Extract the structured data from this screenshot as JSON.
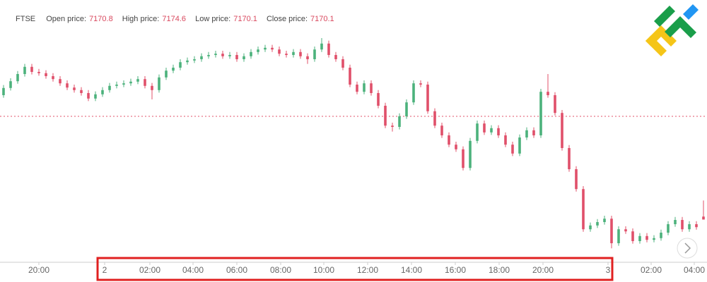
{
  "chart_data": {
    "type": "candlestick",
    "symbol": "FTSE",
    "fields": [
      {
        "label": "Open price:",
        "value": 7170.8
      },
      {
        "label": "High price:",
        "value": 7174.6
      },
      {
        "label": "Low price:",
        "value": 7170.1
      },
      {
        "label": "Close price:",
        "value": 7170.1
      }
    ],
    "up_color": "#4cb27c",
    "down_color": "#e0506a",
    "reference_line": 7194.5,
    "ylim": [
      7160,
      7222
    ],
    "xlim": [
      -0.5,
      99.5
    ],
    "xticks": [
      {
        "value": 5.0,
        "label": "20:00"
      },
      {
        "value": 14.3,
        "label": "2"
      },
      {
        "value": 20.7,
        "label": "02:00"
      },
      {
        "value": 26.8,
        "label": "04:00"
      },
      {
        "value": 33.0,
        "label": "06:00"
      },
      {
        "value": 39.2,
        "label": "08:00"
      },
      {
        "value": 45.3,
        "label": "10:00"
      },
      {
        "value": 51.5,
        "label": "12:00"
      },
      {
        "value": 57.7,
        "label": "14:00"
      },
      {
        "value": 63.9,
        "label": "16:00"
      },
      {
        "value": 70.1,
        "label": "18:00"
      },
      {
        "value": 76.3,
        "label": "20:00"
      },
      {
        "value": 85.5,
        "label": "3"
      },
      {
        "value": 91.6,
        "label": "02:00"
      },
      {
        "value": 97.7,
        "label": "04:00"
      }
    ],
    "ohlc": [
      [
        7199.5,
        7201.9,
        7198.9,
        7201.2
      ],
      [
        7201.2,
        7203.5,
        7200.6,
        7202.8
      ],
      [
        7202.8,
        7205.2,
        7202.2,
        7204.5
      ],
      [
        7204.5,
        7206.9,
        7203.9,
        7206.2
      ],
      [
        7206.2,
        7206.9,
        7204.4,
        7205.0
      ],
      [
        7205.0,
        7205.7,
        7204.1,
        7204.7
      ],
      [
        7204.7,
        7205.4,
        7203.4,
        7204.0
      ],
      [
        7204.0,
        7204.7,
        7202.7,
        7203.3
      ],
      [
        7203.3,
        7204.0,
        7201.7,
        7202.3
      ],
      [
        7202.3,
        7203.0,
        7200.7,
        7201.3
      ],
      [
        7201.3,
        7202.0,
        7200.1,
        7200.7
      ],
      [
        7200.7,
        7201.4,
        7199.4,
        7200.0
      ],
      [
        7200.0,
        7200.7,
        7198.1,
        7198.7
      ],
      [
        7198.7,
        7200.4,
        7198.1,
        7199.7
      ],
      [
        7199.7,
        7201.4,
        7199.1,
        7200.7
      ],
      [
        7200.7,
        7202.4,
        7200.1,
        7201.7
      ],
      [
        7201.7,
        7202.7,
        7201.1,
        7202.0
      ],
      [
        7202.0,
        7203.0,
        7201.4,
        7202.3
      ],
      [
        7202.3,
        7203.4,
        7201.7,
        7202.7
      ],
      [
        7202.7,
        7204.0,
        7202.1,
        7203.3
      ],
      [
        7203.3,
        7204.0,
        7201.1,
        7201.7
      ],
      [
        7201.7,
        7202.4,
        7198.5,
        7200.7
      ],
      [
        7200.7,
        7204.4,
        7200.1,
        7203.7
      ],
      [
        7203.7,
        7206.0,
        7203.1,
        7205.3
      ],
      [
        7205.3,
        7206.7,
        7204.7,
        7206.0
      ],
      [
        7206.0,
        7208.0,
        7205.4,
        7207.3
      ],
      [
        7207.3,
        7208.4,
        7206.7,
        7207.7
      ],
      [
        7207.7,
        7208.7,
        7207.1,
        7208.0
      ],
      [
        7208.0,
        7209.4,
        7207.4,
        7208.7
      ],
      [
        7208.7,
        7209.7,
        7208.1,
        7209.0
      ],
      [
        7209.0,
        7210.0,
        7208.4,
        7209.3
      ],
      [
        7209.3,
        7210.0,
        7208.1,
        7208.7
      ],
      [
        7208.7,
        7209.7,
        7208.1,
        7209.0
      ],
      [
        7209.0,
        7209.7,
        7207.4,
        7208.0
      ],
      [
        7208.0,
        7209.4,
        7207.4,
        7208.7
      ],
      [
        7208.7,
        7210.4,
        7208.1,
        7209.7
      ],
      [
        7209.7,
        7211.0,
        7209.1,
        7210.3
      ],
      [
        7210.3,
        7211.4,
        7209.7,
        7210.7
      ],
      [
        7210.7,
        7211.4,
        7209.7,
        7210.3
      ],
      [
        7210.3,
        7211.0,
        7208.7,
        7209.3
      ],
      [
        7209.3,
        7210.0,
        7208.4,
        7209.0
      ],
      [
        7209.0,
        7210.4,
        7208.4,
        7209.7
      ],
      [
        7209.7,
        7210.4,
        7208.1,
        7208.7
      ],
      [
        7208.7,
        7209.4,
        7206.9,
        7208.0
      ],
      [
        7208.0,
        7211.0,
        7207.4,
        7210.3
      ],
      [
        7210.3,
        7213.0,
        7209.7,
        7211.7
      ],
      [
        7211.7,
        7212.4,
        7208.4,
        7209.0
      ],
      [
        7209.0,
        7209.7,
        7207.4,
        7208.0
      ],
      [
        7208.0,
        7208.7,
        7205.4,
        7206.0
      ],
      [
        7206.0,
        7206.7,
        7201.4,
        7202.0
      ],
      [
        7202.0,
        7202.7,
        7199.7,
        7200.3
      ],
      [
        7200.3,
        7203.0,
        7199.7,
        7202.3
      ],
      [
        7202.3,
        7203.0,
        7199.4,
        7200.0
      ],
      [
        7200.0,
        7200.7,
        7196.4,
        7197.0
      ],
      [
        7197.0,
        7197.7,
        7191.7,
        7192.3
      ],
      [
        7192.3,
        7193.0,
        7190.9,
        7192.0
      ],
      [
        7192.0,
        7195.2,
        7191.4,
        7194.5
      ],
      [
        7194.5,
        7198.5,
        7193.9,
        7197.8
      ],
      [
        7197.8,
        7203.0,
        7197.2,
        7202.3
      ],
      [
        7202.3,
        7203.0,
        7201.4,
        7202.0
      ],
      [
        7202.0,
        7202.7,
        7195.1,
        7195.7
      ],
      [
        7195.7,
        7196.4,
        7191.7,
        7192.3
      ],
      [
        7192.3,
        7193.0,
        7189.4,
        7190.0
      ],
      [
        7190.0,
        7190.7,
        7187.2,
        7187.8
      ],
      [
        7187.8,
        7188.5,
        7186.1,
        7186.7
      ],
      [
        7186.7,
        7187.4,
        7181.7,
        7182.3
      ],
      [
        7182.3,
        7189.4,
        7181.7,
        7188.7
      ],
      [
        7188.7,
        7193.5,
        7188.1,
        7192.8
      ],
      [
        7192.8,
        7193.5,
        7190.1,
        7190.7
      ],
      [
        7190.7,
        7192.4,
        7190.1,
        7191.7
      ],
      [
        7191.7,
        7192.4,
        7189.4,
        7190.0
      ],
      [
        7190.0,
        7190.7,
        7187.2,
        7187.8
      ],
      [
        7187.8,
        7188.5,
        7185.1,
        7185.7
      ],
      [
        7185.7,
        7190.2,
        7185.1,
        7189.5
      ],
      [
        7189.5,
        7191.9,
        7188.9,
        7191.2
      ],
      [
        7191.2,
        7191.9,
        7189.4,
        7190.0
      ],
      [
        7190.0,
        7201.0,
        7189.4,
        7200.3
      ],
      [
        7200.3,
        7204.5,
        7198.9,
        7199.5
      ],
      [
        7199.5,
        7200.2,
        7194.7,
        7195.3
      ],
      [
        7195.3,
        7196.0,
        7186.4,
        7187.0
      ],
      [
        7187.0,
        7187.7,
        7181.4,
        7182.0
      ],
      [
        7182.0,
        7182.7,
        7176.7,
        7177.3
      ],
      [
        7177.3,
        7178.0,
        7167.2,
        7167.8
      ],
      [
        7167.8,
        7169.4,
        7167.2,
        7168.7
      ],
      [
        7168.7,
        7170.2,
        7168.1,
        7169.5
      ],
      [
        7169.5,
        7171.0,
        7168.9,
        7170.3
      ],
      [
        7170.3,
        7171.0,
        7163.3,
        7164.5
      ],
      [
        7164.5,
        7168.5,
        7163.9,
        7167.8
      ],
      [
        7167.8,
        7168.5,
        7166.7,
        7167.3
      ],
      [
        7167.3,
        7168.0,
        7164.4,
        7165.0
      ],
      [
        7165.0,
        7166.9,
        7164.4,
        7166.2
      ],
      [
        7166.2,
        7166.9,
        7164.7,
        7165.3
      ],
      [
        7165.3,
        7166.4,
        7164.7,
        7165.7
      ],
      [
        7165.7,
        7167.7,
        7165.1,
        7167.0
      ],
      [
        7167.0,
        7169.7,
        7166.4,
        7169.0
      ],
      [
        7169.0,
        7170.7,
        7168.4,
        7170.0
      ],
      [
        7170.0,
        7170.7,
        7167.2,
        7167.8
      ],
      [
        7167.8,
        7169.7,
        7167.2,
        7169.0
      ],
      [
        7169.0,
        7169.7,
        7167.7,
        7168.3
      ],
      [
        7170.8,
        7174.6,
        7170.1,
        7170.1
      ]
    ]
  }
}
